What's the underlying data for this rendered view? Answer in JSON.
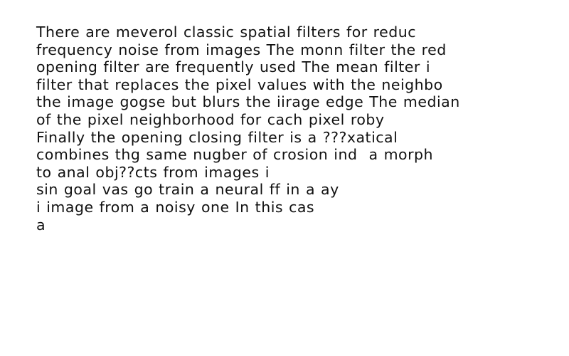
{
  "document": {
    "lines": [
      "There are meverol classic spatial filters for reduc",
      "frequency noise from images The monn filter the red",
      "opening filter are frequently used The mean filter i",
      "filter that replaces the pixel values with the neighbo",
      "the image gogse but blurs the iirage edge The median",
      "of the pixel neighborhood for cach pixel roby",
      "Finally the opening closing filter is a ???xatical",
      "combines thg same nugber of crosion ind  a morph",
      "to anal obj??cts from images i",
      "sin goal vas go train a neural ff in a ay",
      "i image from a noisy one In this cas",
      "a"
    ]
  }
}
